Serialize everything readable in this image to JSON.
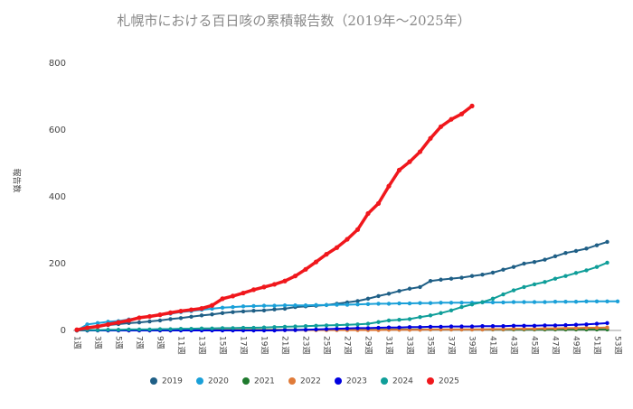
{
  "chart_data": {
    "type": "line",
    "title": "札幌市における百日咳の累積報告数（2019年～2025年）",
    "y_label": "報告数",
    "categories": [
      "1週",
      null,
      "3週",
      null,
      "5週",
      null,
      "7週",
      null,
      "9週",
      null,
      "11週",
      null,
      "13週",
      null,
      "15週",
      null,
      "17週",
      null,
      "19週",
      null,
      "21週",
      null,
      "23週",
      null,
      "25週",
      null,
      "27週",
      null,
      "29週",
      null,
      "31週",
      null,
      "33週",
      null,
      "35週",
      null,
      "37週",
      null,
      "39週",
      null,
      "41週",
      null,
      "43週",
      null,
      "45週",
      null,
      "47週",
      null,
      "49週",
      null,
      "51週",
      null,
      "53週"
    ],
    "ylim": [
      0,
      800
    ],
    "yticks": [
      0,
      200,
      400,
      600,
      800
    ],
    "grid": false,
    "legend": "bottom",
    "series": [
      {
        "name": "2019",
        "color": "#1f5f86",
        "values": [
          0,
          8,
          12,
          16,
          19,
          22,
          24,
          27,
          30,
          34,
          37,
          41,
          45,
          48,
          52,
          55,
          57,
          59,
          60,
          63,
          65,
          70,
          72,
          74,
          76,
          80,
          84,
          88,
          95,
          103,
          110,
          118,
          125,
          130,
          148,
          152,
          155,
          158,
          163,
          167,
          173,
          182,
          190,
          200,
          205,
          212,
          222,
          232,
          238,
          245,
          255,
          265,
          null
        ]
      },
      {
        "name": "2020",
        "color": "#1aa0d8",
        "values": [
          0,
          18,
          22,
          26,
          28,
          33,
          38,
          42,
          46,
          50,
          55,
          58,
          62,
          65,
          68,
          70,
          72,
          73,
          74,
          74,
          75,
          75,
          75,
          76,
          76,
          77,
          77,
          78,
          79,
          80,
          80,
          81,
          81,
          82,
          82,
          83,
          83,
          83,
          83,
          84,
          84,
          84,
          85,
          85,
          85,
          85,
          86,
          86,
          86,
          87,
          87,
          87,
          87
        ]
      },
      {
        "name": "2021",
        "color": "#1f7a2e",
        "values": [
          0,
          0,
          1,
          1,
          1,
          1,
          1,
          1,
          1,
          1,
          2,
          2,
          2,
          2,
          2,
          2,
          2,
          2,
          2,
          2,
          2,
          2,
          2,
          2,
          2,
          2,
          2,
          2,
          2,
          2,
          3,
          3,
          3,
          3,
          3,
          3,
          3,
          3,
          3,
          3,
          3,
          3,
          3,
          3,
          3,
          3,
          3,
          3,
          3,
          3,
          3,
          3,
          null
        ]
      },
      {
        "name": "2022",
        "color": "#e07b39",
        "values": [
          0,
          0,
          0,
          0,
          0,
          0,
          0,
          0,
          0,
          0,
          1,
          1,
          1,
          1,
          1,
          1,
          1,
          1,
          1,
          1,
          1,
          1,
          1,
          1,
          1,
          1,
          1,
          1,
          1,
          1,
          2,
          2,
          2,
          2,
          3,
          3,
          3,
          3,
          3,
          3,
          4,
          4,
          5,
          5,
          5,
          6,
          6,
          7,
          7,
          8,
          8,
          9,
          null
        ]
      },
      {
        "name": "2023",
        "color": "#0000e0",
        "values": [
          0,
          0,
          0,
          0,
          0,
          0,
          0,
          0,
          0,
          0,
          0,
          0,
          0,
          0,
          0,
          0,
          0,
          0,
          0,
          0,
          1,
          1,
          2,
          3,
          4,
          5,
          6,
          7,
          7,
          8,
          9,
          9,
          10,
          10,
          11,
          11,
          12,
          12,
          12,
          13,
          13,
          13,
          14,
          14,
          14,
          15,
          15,
          16,
          17,
          18,
          20,
          22,
          null
        ]
      },
      {
        "name": "2024",
        "color": "#0f9e99",
        "values": [
          0,
          1,
          1,
          2,
          2,
          3,
          3,
          3,
          4,
          4,
          5,
          5,
          6,
          6,
          7,
          7,
          8,
          8,
          9,
          10,
          11,
          12,
          13,
          14,
          15,
          16,
          17,
          18,
          20,
          25,
          30,
          32,
          34,
          40,
          45,
          52,
          60,
          70,
          78,
          85,
          95,
          108,
          120,
          130,
          138,
          145,
          155,
          163,
          172,
          180,
          190,
          203,
          null
        ]
      },
      {
        "name": "2025",
        "color": "#f0171c",
        "values": [
          2,
          8,
          12,
          18,
          24,
          30,
          38,
          42,
          47,
          53,
          58,
          62,
          66,
          75,
          95,
          103,
          112,
          122,
          130,
          138,
          148,
          163,
          183,
          205,
          228,
          248,
          273,
          302,
          350,
          380,
          432,
          480,
          505,
          535,
          575,
          610,
          632,
          648,
          672,
          null,
          null,
          null,
          null,
          null,
          null,
          null,
          null,
          null,
          null,
          null,
          null,
          null,
          null
        ]
      }
    ]
  }
}
